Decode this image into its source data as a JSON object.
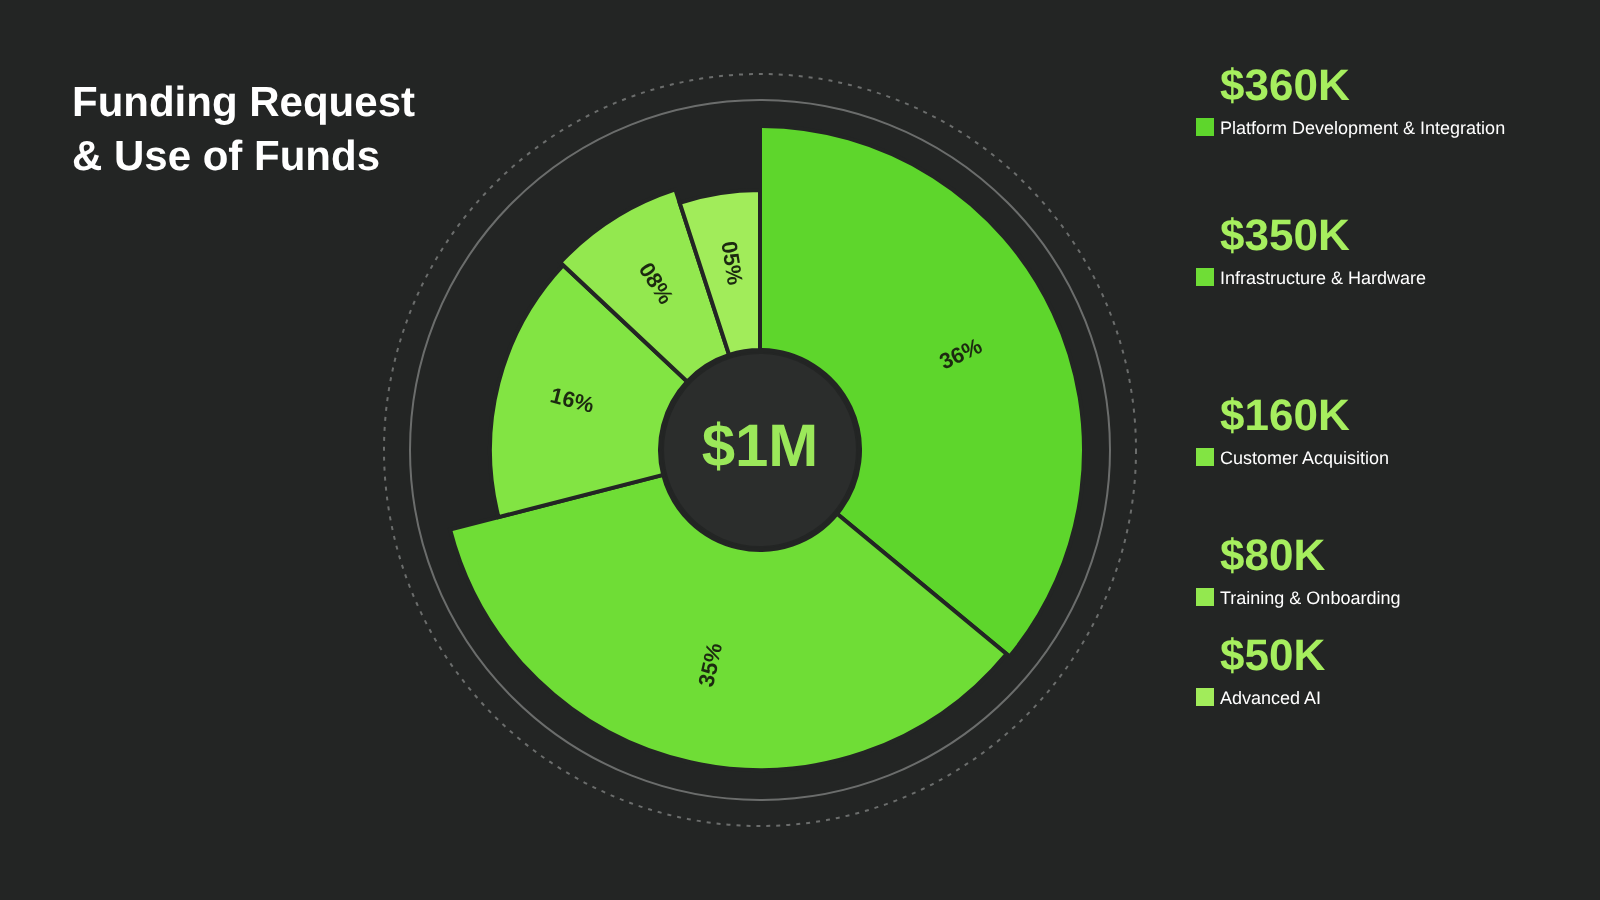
{
  "chart_data": {
    "type": "donut",
    "title": "Funding Request\n& Use of Funds",
    "categories": [
      "Platform Development & Integration",
      "Infrastructure & Hardware",
      "Customer Acquisition",
      "Training & Onboarding",
      "Advanced AI"
    ],
    "values": [
      36,
      35,
      16,
      8,
      5
    ],
    "value_labels": [
      "36%",
      "35%",
      "16%",
      "08%",
      "05%"
    ],
    "colors": [
      "#5ed62c",
      "#6fdd36",
      "#82e443",
      "#93e84f",
      "#a1ec5a"
    ],
    "annotations": [
      "$360K",
      "$350K",
      "$160K",
      "$80K",
      "$50K",
      "$1M"
    ],
    "legend": "right"
  }
}
